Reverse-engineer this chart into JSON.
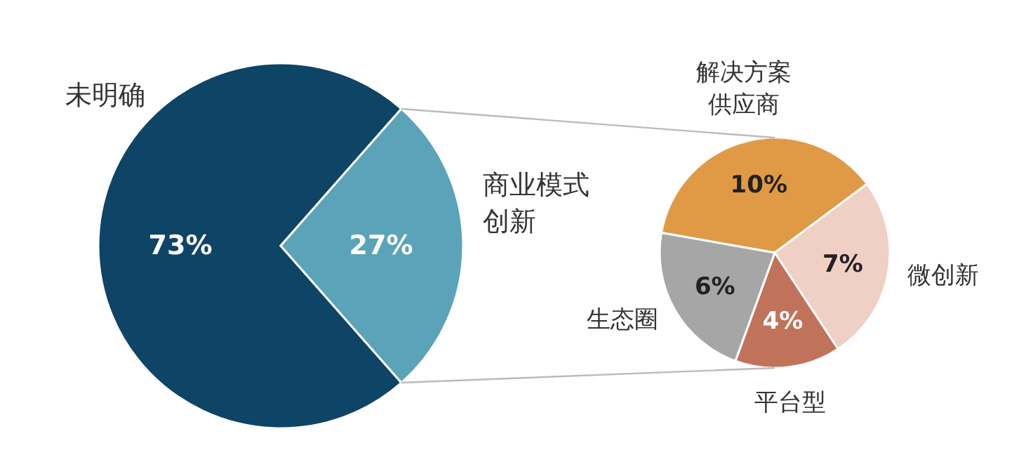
{
  "chart_data": [
    {
      "type": "pie",
      "categories": [
        "未明确",
        "商业模式创新"
      ],
      "values": [
        73,
        27
      ],
      "value_labels": [
        "73%",
        "27%"
      ],
      "colors": [
        "#0e4466",
        "#5aa3b8"
      ]
    },
    {
      "type": "pie",
      "categories": [
        "解决方案供应商",
        "微创新",
        "平台型",
        "生态圈"
      ],
      "values": [
        10,
        7,
        4,
        6
      ],
      "value_labels": [
        "10%",
        "7%",
        "4%",
        "6%"
      ],
      "colors": [
        "#e09a45",
        "#f0cfc4",
        "#c0735a",
        "#a6a6a6"
      ]
    }
  ]
}
